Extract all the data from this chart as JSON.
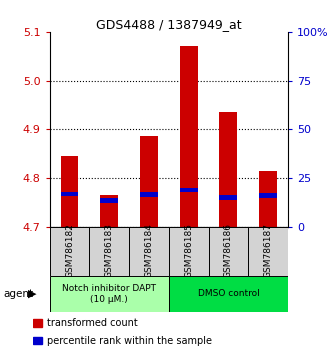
{
  "title": "GDS4488 / 1387949_at",
  "samples": [
    "GSM786182",
    "GSM786183",
    "GSM786184",
    "GSM786185",
    "GSM786186",
    "GSM786187"
  ],
  "red_values": [
    4.845,
    4.765,
    4.887,
    5.07,
    4.935,
    4.815
  ],
  "blue_values": [
    4.762,
    4.748,
    4.76,
    4.77,
    4.755,
    4.758
  ],
  "y_min": 4.7,
  "y_max": 5.1,
  "y_ticks": [
    4.7,
    4.8,
    4.9,
    5.0,
    5.1
  ],
  "right_y_ticks": [
    0,
    25,
    50,
    75,
    100
  ],
  "right_y_labels": [
    "0",
    "25",
    "50",
    "75",
    "100%"
  ],
  "groups": [
    {
      "label": "Notch inhibitor DAPT\n(10 μM.)",
      "color": "#aaffaa",
      "start": 0,
      "end": 3
    },
    {
      "label": "DMSO control",
      "color": "#00dd44",
      "start": 3,
      "end": 6
    }
  ],
  "bar_color": "#cc0000",
  "marker_color": "#0000cc",
  "base_value": 4.7,
  "legend_items": [
    {
      "color": "#cc0000",
      "label": "transformed count"
    },
    {
      "color": "#0000cc",
      "label": "percentile rank within the sample"
    }
  ],
  "agent_label": "agent",
  "left_axis_color": "#cc0000",
  "right_axis_color": "#0000cc",
  "sample_box_color": "#d3d3d3",
  "title_fontsize": 9,
  "axis_fontsize": 8,
  "tick_fontsize": 7.5,
  "legend_fontsize": 7,
  "bar_width": 0.45
}
